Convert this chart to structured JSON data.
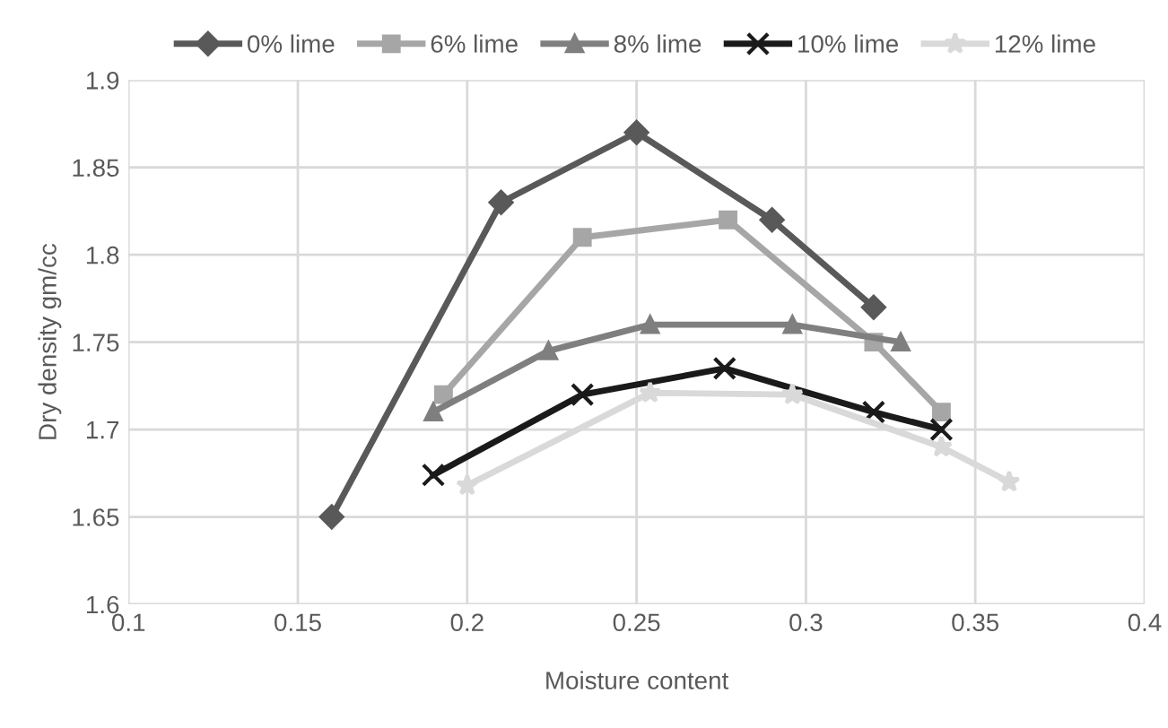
{
  "chart_data": {
    "type": "line",
    "xlabel": "Moisture content",
    "ylabel": "Dry density gm/cc",
    "xlim": [
      0.1,
      0.4
    ],
    "xticks": [
      0.1,
      0.15,
      0.2,
      0.25,
      0.3,
      0.35,
      0.4
    ],
    "ylim": [
      1.6,
      1.9
    ],
    "yticks": [
      1.6,
      1.65,
      1.7,
      1.75,
      1.8,
      1.85,
      1.9
    ],
    "grid": true,
    "legend": "top",
    "line_style": "solid",
    "series": [
      {
        "name": "0% lime",
        "color": "#595959",
        "marker": "diamond",
        "x": [
          0.16,
          0.21,
          0.25,
          0.29,
          0.32
        ],
        "values": [
          1.65,
          1.83,
          1.87,
          1.82,
          1.77
        ]
      },
      {
        "name": "6% lime",
        "color": "#a6a6a6",
        "marker": "square",
        "x": [
          0.193,
          0.234,
          0.277,
          0.32,
          0.34
        ],
        "values": [
          1.72,
          1.81,
          1.82,
          1.75,
          1.71
        ]
      },
      {
        "name": "8% lime",
        "color": "#7f7f7f",
        "marker": "triangle",
        "x": [
          0.19,
          0.224,
          0.254,
          0.296,
          0.328
        ],
        "values": [
          1.71,
          1.745,
          1.76,
          1.76,
          1.75
        ]
      },
      {
        "name": "10% lime",
        "color": "#1a1a1a",
        "marker": "cross",
        "x": [
          0.19,
          0.234,
          0.276,
          0.32,
          0.34
        ],
        "values": [
          1.674,
          1.72,
          1.735,
          1.71,
          1.7
        ]
      },
      {
        "name": "12% lime",
        "color": "#d9d9d9",
        "marker": "star",
        "x": [
          0.2,
          0.254,
          0.296,
          0.34,
          0.36
        ],
        "values": [
          1.668,
          1.721,
          1.72,
          1.69,
          1.67
        ]
      }
    ]
  }
}
